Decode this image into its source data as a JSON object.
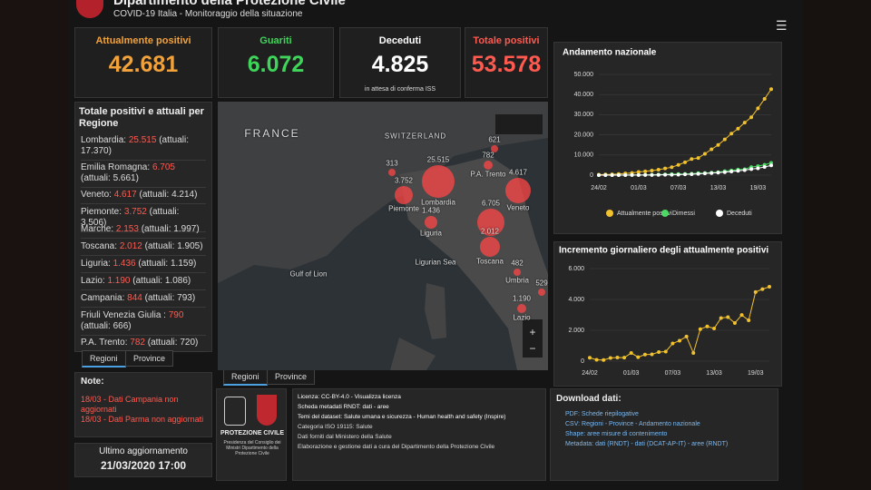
{
  "header": {
    "title": "Dipartimento della Protezione Civile",
    "subtitle": "COVID-19 Italia - Monitoraggio della situazione"
  },
  "kpis": [
    {
      "label": "Attualmente positivi",
      "value": "42.681"
    },
    {
      "label": "Guariti",
      "value": "6.072"
    },
    {
      "label": "Deceduti",
      "value": "4.825",
      "note": "in attesa di conferma ISS"
    },
    {
      "label": "Totale positivi",
      "value": "53.578"
    }
  ],
  "regions_panel": {
    "title": "Totale positivi e attuali per Regione",
    "items": [
      {
        "name": "Lombardia:",
        "totale": "25.515",
        "attuali": "(attuali: 17.370)"
      },
      {
        "name": "Emilia Romagna:",
        "totale": "6.705",
        "attuali": "(attuali: 5.661)"
      },
      {
        "name": "Veneto:",
        "totale": "4.617",
        "attuali": "(attuali: 4.214)"
      },
      {
        "name": "Piemonte:",
        "totale": "3.752",
        "attuali": "(attuali: 3.506)"
      },
      {
        "name": "Marche:",
        "totale": "2.153",
        "attuali": "(attuali: 1.997)"
      },
      {
        "name": "Toscana:",
        "totale": "2.012",
        "attuali": "(attuali: 1.905)"
      },
      {
        "name": "Liguria:",
        "totale": "1.436",
        "attuali": "(attuali: 1.159)"
      },
      {
        "name": "Lazio:",
        "totale": "1.190",
        "attuali": "(attuali: 1.086)"
      },
      {
        "name": "Campania:",
        "totale": "844",
        "attuali": "(attuali: 793)"
      },
      {
        "name": "Friuli Venezia Giulia :",
        "totale": "790",
        "attuali": "(attuali: 666)"
      },
      {
        "name": "P.A. Trento:",
        "totale": "782",
        "attuali": "(attuali: 720)"
      }
    ],
    "tabs": [
      "Regioni",
      "Province"
    ]
  },
  "map": {
    "labels": [
      "FRANCE",
      "SWITZERLAND",
      "Gulf of Lion",
      "Ligurian Sea"
    ],
    "bubbles": [
      {
        "value": "313"
      },
      {
        "value": "3.752",
        "name": "Piemonte"
      },
      {
        "value": "25.515",
        "name": "Lombardia"
      },
      {
        "value": "621"
      },
      {
        "value": "782",
        "name": "P.A. Trento"
      },
      {
        "value": "4.617",
        "name": "Veneto"
      },
      {
        "value": "1.436",
        "name": "Liguria"
      },
      {
        "value": "6.705"
      },
      {
        "value": "2.012",
        "name": "Toscana"
      },
      {
        "value": "482",
        "name": "Umbria"
      },
      {
        "value": "529"
      },
      {
        "value": "1.190",
        "name": "Lazio"
      }
    ],
    "tabs": [
      "Regioni",
      "Province"
    ]
  },
  "note": {
    "title": "Note:",
    "items": [
      "18/03 - Dati Campania non aggiornati",
      "18/03 - Dati Parma non aggiornati"
    ]
  },
  "update": {
    "label": "Ultimo aggiornamento",
    "value": "21/03/2020 17:00"
  },
  "logo": {
    "name": "PROTEZIONE CIVILE",
    "caption": "Presidenza del Consiglio dei Ministri Dipartimento della Protezione Civile"
  },
  "info": {
    "lines": [
      "Licenza: CC-BY-4.0 - Visualizza licenza",
      "Scheda metadati RNDT: dati - aree",
      "Temi del dataset: Salute umana e sicurezza - Human health and safety (Inspire)",
      "Categoria ISO 19115: Salute",
      "Dati forniti dal Ministero della Salute",
      "Elaborazione e gestione dati a cura del Dipartimento della Protezione Civile"
    ]
  },
  "download": {
    "title": "Download dati:",
    "items": [
      "PDF: Schede riepilogative",
      "CSV: Regioni - Province - Andamento nazionale",
      "Shape: aree misure di contenimento",
      "Metadata: dati (RNDT) - dati (DCAT-AP-IT) - aree (RNDT)"
    ]
  },
  "charts": [
    {
      "type": "line",
      "title": "Andamento nazionale",
      "categories": [
        "24/02",
        null,
        null,
        null,
        null,
        null,
        "01/03",
        null,
        null,
        null,
        null,
        null,
        "07/03",
        null,
        null,
        null,
        null,
        null,
        "13/03",
        null,
        null,
        null,
        null,
        null,
        "19/03",
        null,
        null
      ],
      "series": [
        {
          "name": "Attualmente positivi",
          "color": "#f2c12e",
          "values": [
            221,
            311,
            385,
            588,
            821,
            1049,
            1577,
            1835,
            2263,
            2706,
            3296,
            3916,
            5061,
            6387,
            7985,
            8514,
            10590,
            12839,
            14955,
            17750,
            20603,
            23073,
            26062,
            28710,
            33190,
            37860,
            42681
          ]
        },
        {
          "name": "Dimessi",
          "color": "#4cd964",
          "values": [
            1,
            1,
            3,
            45,
            46,
            50,
            83,
            149,
            160,
            276,
            414,
            523,
            589,
            622,
            724,
            1004,
            1045,
            1258,
            1439,
            1966,
            2335,
            2749,
            2941,
            4025,
            4440,
            5129,
            6072
          ]
        },
        {
          "name": "Deceduti",
          "color": "#ffffff",
          "values": [
            7,
            10,
            12,
            17,
            21,
            29,
            34,
            52,
            79,
            107,
            148,
            197,
            233,
            366,
            463,
            631,
            827,
            1016,
            1266,
            1441,
            1809,
            2158,
            2503,
            2978,
            3405,
            4032,
            4825
          ]
        }
      ],
      "ylim": [
        0,
        50000
      ],
      "yticks": [
        0,
        {
          "value": 10000,
          "label": "10.000"
        },
        {
          "value": 20000,
          "label": "20.000"
        },
        {
          "value": 30000,
          "label": "30.000"
        },
        {
          "value": 40000,
          "label": "40.000"
        },
        {
          "value": 50000,
          "label": "50.000"
        }
      ],
      "grid": true
    },
    {
      "type": "line",
      "title": "Incremento giornaliero degli attualmente positivi",
      "categories": [
        "24/02",
        null,
        null,
        null,
        null,
        null,
        "01/03",
        null,
        null,
        null,
        null,
        null,
        "07/03",
        null,
        null,
        null,
        null,
        null,
        "13/03",
        null,
        null,
        null,
        null,
        null,
        "19/03",
        null,
        null
      ],
      "color": "#f2c12e",
      "values": [
        221,
        90,
        74,
        203,
        233,
        228,
        528,
        258,
        428,
        443,
        590,
        620,
        1145,
        1326,
        1598,
        529,
        2076,
        2249,
        2116,
        2795,
        2853,
        2470,
        2989,
        2648,
        4480,
        4670,
        4821
      ],
      "ylim": [
        0,
        6000
      ],
      "yticks": [
        0,
        {
          "value": 2000,
          "label": "2.000"
        },
        {
          "value": 4000,
          "label": "4.000"
        },
        {
          "value": 6000,
          "label": "6.000"
        }
      ],
      "grid": true
    }
  ]
}
